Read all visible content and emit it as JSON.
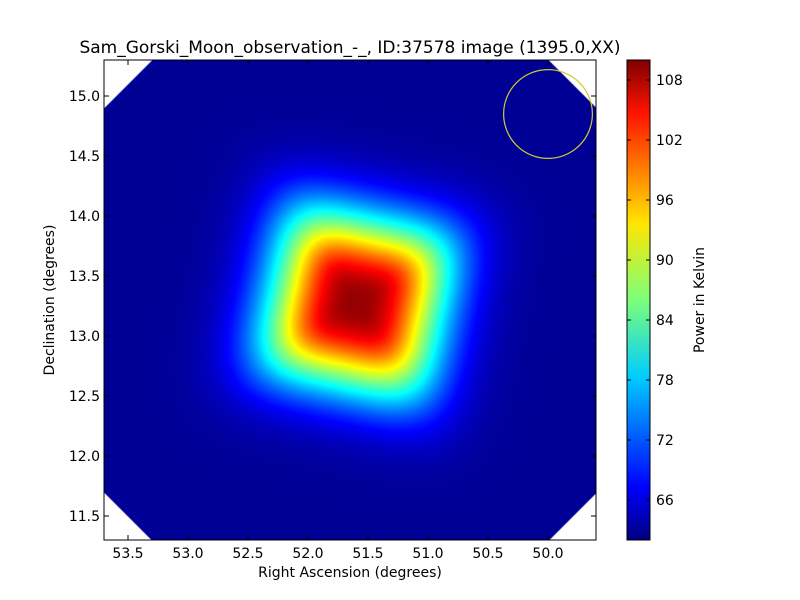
{
  "chart_data": {
    "type": "heatmap",
    "title": "Sam_Gorski_Moon_observation_-_, ID:37578 image (1395.0,XX)",
    "xlabel": "Right Ascension (degrees)",
    "ylabel": "Declination (degrees)",
    "xlim": [
      53.7,
      49.6
    ],
    "ylim": [
      11.3,
      15.3
    ],
    "x_ticks": [
      "53.5",
      "53.0",
      "52.5",
      "52.0",
      "51.5",
      "51.0",
      "50.5",
      "50.0"
    ],
    "x_tick_values": [
      53.5,
      53.0,
      52.5,
      52.0,
      51.5,
      51.0,
      50.5,
      50.0
    ],
    "y_ticks": [
      "11.5",
      "12.0",
      "12.5",
      "13.0",
      "13.5",
      "14.0",
      "14.5",
      "15.0"
    ],
    "y_tick_values": [
      11.5,
      12.0,
      12.5,
      13.0,
      13.5,
      14.0,
      14.5,
      15.0
    ],
    "colorbar": {
      "label": "Power in Kelvin",
      "range": [
        62.0,
        110.0
      ],
      "ticks": [
        "66",
        "72",
        "78",
        "84",
        "90",
        "96",
        "102",
        "108"
      ],
      "tick_values": [
        66,
        72,
        78,
        84,
        90,
        96,
        102,
        108
      ],
      "colormap": "jet"
    },
    "peak": {
      "ra": 51.6,
      "dec": 13.28,
      "value": 109.0
    },
    "background_value": 63.0,
    "beam_circle": {
      "ra": 50.0,
      "dec": 14.85,
      "radius_deg": 0.37,
      "color": "#cccc33"
    },
    "grid": false
  }
}
